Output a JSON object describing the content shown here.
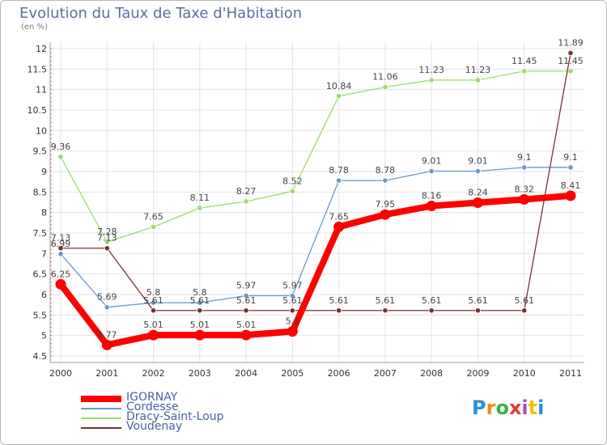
{
  "title": "Evolution du Taux de Taxe d'Habitation",
  "subtitle": "(en %)",
  "logo": "Proxiti",
  "colors": {
    "IGORNAY": "#ff0000",
    "Cordesse": "#6699cc",
    "Dracy-Saint-Loup": "#99dd66",
    "Voudenay": "#7a3030"
  },
  "chart_data": {
    "type": "line",
    "x": [
      "2000",
      "2001",
      "2002",
      "2003",
      "2004",
      "2005",
      "2006",
      "2007",
      "2008",
      "2009",
      "2010",
      "2011"
    ],
    "ylim": [
      4.5,
      12
    ],
    "yticks": [
      "4.5",
      "5",
      "5.5",
      "6",
      "6.5",
      "7",
      "7.5",
      "8",
      "8.5",
      "9",
      "9.5",
      "10",
      "10.5",
      "11",
      "11.5",
      "12"
    ],
    "grid": true,
    "legend_position": "bottom-left",
    "series": [
      {
        "name": "IGORNAY",
        "values": [
          6.25,
          4.77,
          5.01,
          5.01,
          5.01,
          5.1,
          7.65,
          7.95,
          8.16,
          8.24,
          8.32,
          8.41
        ],
        "labels": [
          "6.25",
          "4.77",
          "5.01",
          "5.01",
          "5.01",
          "5.1",
          "7.65",
          "7.95",
          "8.16",
          "8.24",
          "8.32",
          "8.41"
        ]
      },
      {
        "name": "Cordesse",
        "values": [
          6.99,
          5.69,
          5.8,
          5.8,
          5.97,
          5.97,
          8.78,
          8.78,
          9.01,
          9.01,
          9.1,
          9.1
        ],
        "labels": [
          "6.99",
          "5.69",
          "5.8",
          "5.8",
          "5.97",
          "5.97",
          "8.78",
          "8.78",
          "9.01",
          "9.01",
          "9.1",
          "9.1"
        ]
      },
      {
        "name": "Dracy-Saint-Loup",
        "values": [
          9.36,
          7.28,
          7.65,
          8.11,
          8.27,
          8.52,
          10.84,
          11.06,
          11.23,
          11.23,
          11.45,
          11.45
        ],
        "labels": [
          "9.36",
          "7.28",
          "7.65",
          "8.11",
          "8.27",
          "8.52",
          "10.84",
          "11.06",
          "11.23",
          "11.23",
          "11.45",
          "11.45"
        ]
      },
      {
        "name": "Voudenay",
        "values": [
          7.13,
          7.13,
          5.61,
          5.61,
          5.61,
          5.61,
          5.61,
          5.61,
          5.61,
          5.61,
          5.61,
          11.89
        ],
        "labels": [
          "7.13",
          "7.13",
          "5.61",
          "5.61",
          "5.61",
          "5.61",
          "5.61",
          "5.61",
          "5.61",
          "5.61",
          "5.61",
          "11.89"
        ]
      }
    ]
  }
}
